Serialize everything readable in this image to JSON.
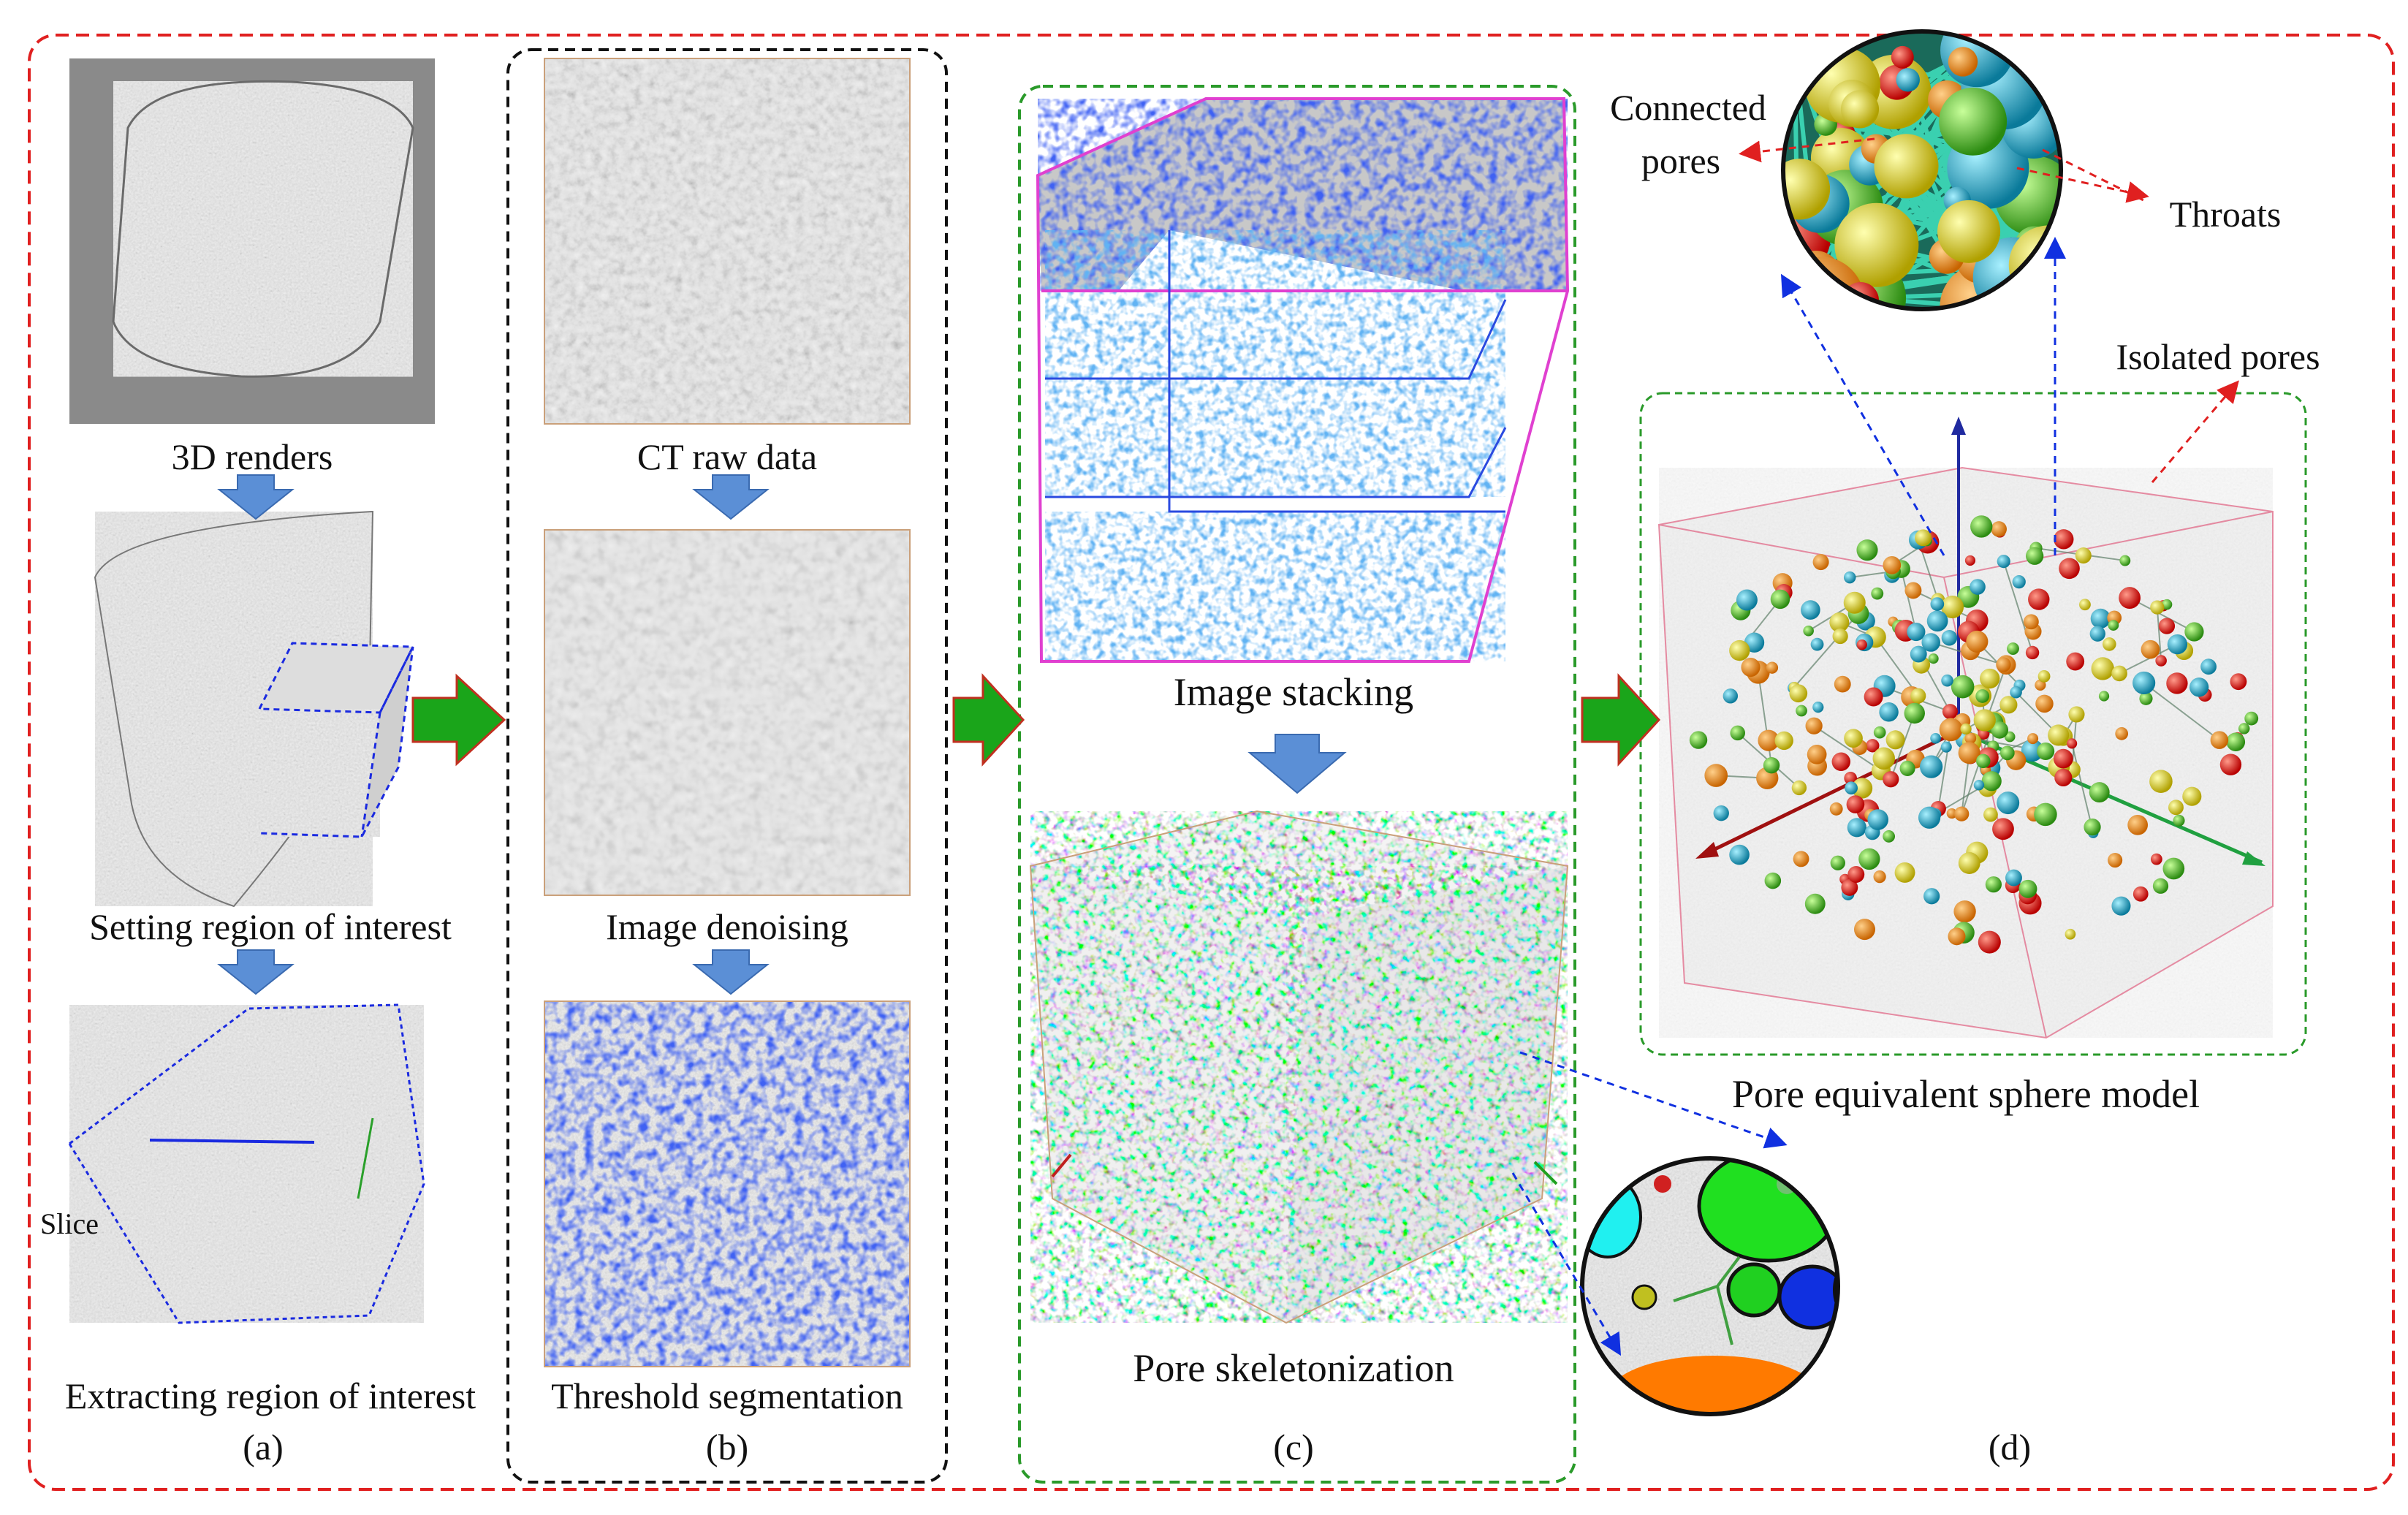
{
  "panels": {
    "a": {
      "tag": "(a)",
      "steps": [
        "3D renders",
        "Setting region of interest",
        "Extracting region of interest"
      ],
      "slice_label": "Slice"
    },
    "b": {
      "tag": "(b)",
      "steps": [
        "CT raw data",
        "Image denoising",
        "Threshold segmentation"
      ]
    },
    "c": {
      "tag": "(c)",
      "steps": [
        "Image stacking",
        "Pore skeletonization"
      ]
    },
    "d": {
      "tag": "(d)",
      "model_label": "Pore equivalent sphere model",
      "connected_pores": [
        "Connected",
        "pores"
      ],
      "throats": "Throats",
      "isolated_pores": "Isolated pores"
    }
  },
  "colors": {
    "frame_red": "#e02020",
    "frame_black": "#111111",
    "frame_green": "#2a9a2a",
    "flow_arrow_green": "#1aa51a",
    "step_arrow_blue": "#5b8fd6",
    "pore_blue": "#1020e0",
    "stack_pink": "#e040d0"
  }
}
